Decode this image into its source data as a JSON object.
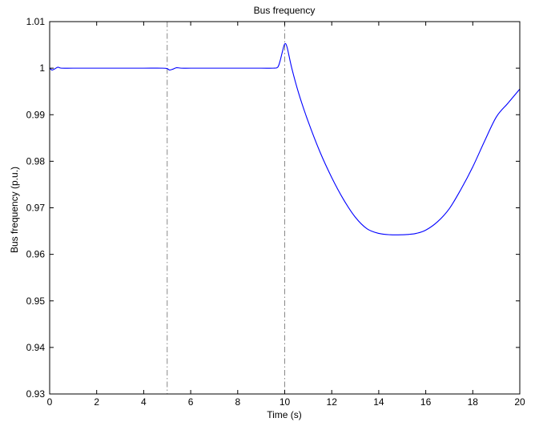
{
  "chart_data": {
    "type": "line",
    "title": "Bus frequency",
    "xlabel": "Time (s)",
    "ylabel": "Bus frequency (p.u.)",
    "xlim": [
      0,
      20
    ],
    "ylim": [
      0.93,
      1.01
    ],
    "x_ticks": [
      "0",
      "2",
      "4",
      "6",
      "8",
      "10",
      "12",
      "14",
      "16",
      "18",
      "20"
    ],
    "y_ticks": [
      "0.93",
      "0.94",
      "0.95",
      "0.96",
      "0.97",
      "0.98",
      "0.99",
      "1",
      "1.01"
    ],
    "grid": false,
    "legend": "none",
    "line_color": "#0000ff",
    "marker_line_color": "#888888",
    "vertical_markers": [
      5,
      10
    ],
    "series": [
      {
        "x": [
          0,
          0.1,
          0.2,
          0.35,
          0.5,
          1,
          2,
          3,
          4,
          4.8,
          5,
          5.1,
          5.25,
          5.4,
          5.6,
          6,
          7,
          8,
          9,
          9.5,
          9.7,
          9.8,
          9.9,
          10.0,
          10.1,
          10.3,
          10.6,
          11.0,
          11.5,
          12.0,
          12.5,
          13.0,
          13.5,
          14.0,
          14.5,
          15.0,
          15.3,
          15.6,
          16.0,
          16.5,
          17.0,
          17.5,
          18.0,
          18.5,
          19.0,
          19.5,
          20.0
        ],
        "y": [
          1.0,
          0.9996,
          0.9998,
          1.0002,
          1.0,
          1.0,
          1.0,
          1.0,
          1.0,
          1.0,
          0.9999,
          0.9996,
          0.9998,
          1.0001,
          1.0,
          1.0,
          1.0,
          1.0,
          1.0,
          1.0,
          1.0002,
          1.0015,
          1.0035,
          1.0052,
          1.0045,
          1.0,
          0.9945,
          0.9885,
          0.982,
          0.9765,
          0.9718,
          0.968,
          0.9655,
          0.9645,
          0.9642,
          0.9642,
          0.9643,
          0.9645,
          0.9652,
          0.967,
          0.9698,
          0.974,
          0.9788,
          0.9843,
          0.9895,
          0.9925,
          0.9955
        ]
      }
    ]
  }
}
